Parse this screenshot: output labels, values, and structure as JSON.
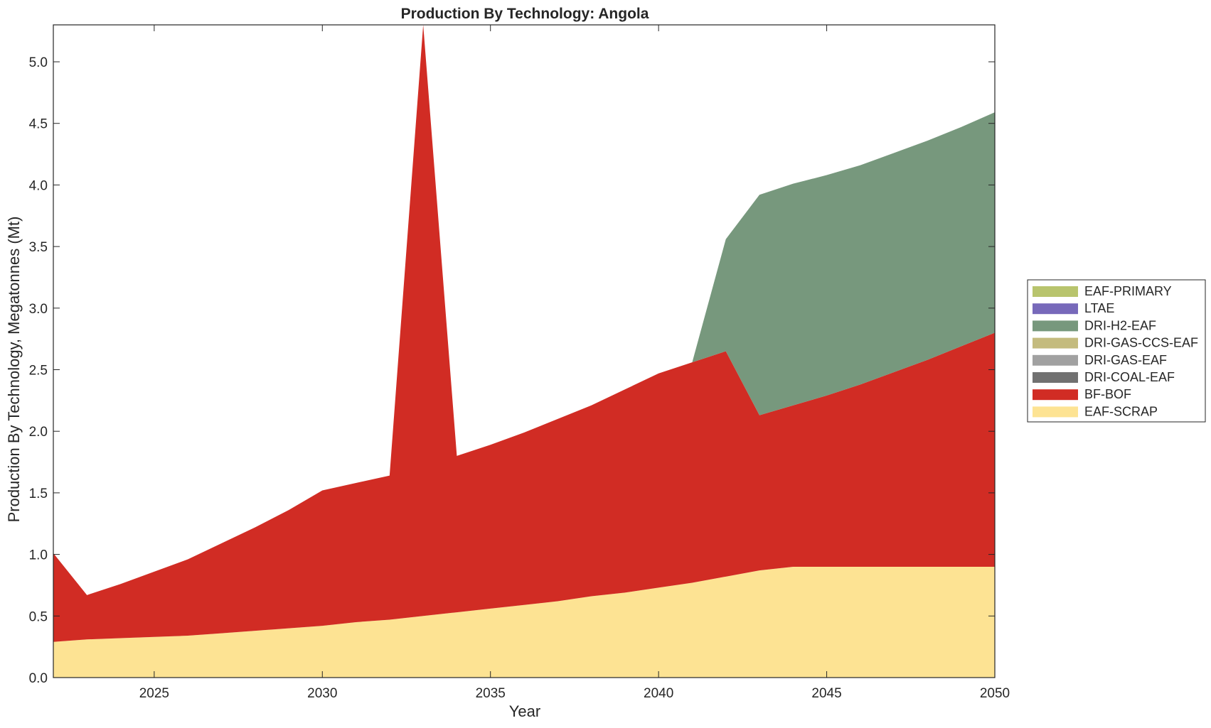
{
  "chart_data": {
    "type": "area",
    "stacked": true,
    "title": "Production By Technology: Angola",
    "xlabel": "Year",
    "ylabel": "Production By Technology, Megatonnes (Mt)",
    "xlim": [
      2022,
      2050
    ],
    "ylim": [
      0,
      5.3
    ],
    "xticks": [
      2025,
      2030,
      2035,
      2040,
      2045,
      2050
    ],
    "yticks": [
      0.0,
      0.5,
      1.0,
      1.5,
      2.0,
      2.5,
      3.0,
      3.5,
      4.0,
      4.5,
      5.0
    ],
    "ytick_labels": [
      "0.0",
      "0.5",
      "1.0",
      "1.5",
      "2.0",
      "2.5",
      "3.0",
      "3.5",
      "4.0",
      "4.5",
      "5.0"
    ],
    "legend_position": "right",
    "grid": false,
    "x": [
      2022,
      2023,
      2024,
      2025,
      2026,
      2027,
      2028,
      2029,
      2030,
      2031,
      2032,
      2033,
      2034,
      2035,
      2036,
      2037,
      2038,
      2039,
      2040,
      2041,
      2042,
      2043,
      2044,
      2045,
      2046,
      2047,
      2048,
      2049,
      2050
    ],
    "series": [
      {
        "name": "EAF-SCRAP",
        "color": "#FDE393",
        "values": [
          0.29,
          0.31,
          0.32,
          0.33,
          0.34,
          0.36,
          0.38,
          0.4,
          0.42,
          0.45,
          0.47,
          0.5,
          0.53,
          0.56,
          0.59,
          0.62,
          0.66,
          0.69,
          0.73,
          0.77,
          0.82,
          0.87,
          0.9,
          0.9,
          0.9,
          0.9,
          0.9,
          0.9,
          0.9
        ]
      },
      {
        "name": "BF-BOF",
        "color": "#D12C24",
        "values": [
          0.72,
          0.36,
          0.44,
          0.53,
          0.62,
          0.73,
          0.84,
          0.96,
          1.1,
          1.13,
          1.17,
          4.8,
          1.27,
          1.33,
          1.4,
          1.48,
          1.55,
          1.65,
          1.74,
          1.79,
          1.83,
          1.26,
          1.31,
          1.39,
          1.48,
          1.58,
          1.68,
          1.79,
          1.9
        ]
      },
      {
        "name": "DRI-COAL-EAF",
        "color": "#717171",
        "values": [
          0,
          0,
          0,
          0,
          0,
          0,
          0,
          0,
          0,
          0,
          0,
          0,
          0,
          0,
          0,
          0,
          0,
          0,
          0,
          0,
          0,
          0,
          0,
          0,
          0,
          0,
          0,
          0,
          0
        ]
      },
      {
        "name": "DRI-GAS-EAF",
        "color": "#A1A1A1",
        "values": [
          0,
          0,
          0,
          0,
          0,
          0,
          0,
          0,
          0,
          0,
          0,
          0,
          0,
          0,
          0,
          0,
          0,
          0,
          0,
          0,
          0,
          0,
          0,
          0,
          0,
          0,
          0,
          0,
          0
        ]
      },
      {
        "name": "DRI-GAS-CCS-EAF",
        "color": "#C4BB7E",
        "values": [
          0,
          0,
          0,
          0,
          0,
          0,
          0,
          0,
          0,
          0,
          0,
          0,
          0,
          0,
          0,
          0,
          0,
          0,
          0,
          0,
          0,
          0,
          0,
          0,
          0,
          0,
          0,
          0,
          0
        ]
      },
      {
        "name": "DRI-H2-EAF",
        "color": "#77987D",
        "values": [
          0,
          0,
          0,
          0,
          0,
          0,
          0,
          0,
          0,
          0,
          0,
          0,
          0,
          0,
          0,
          0,
          0,
          0,
          0,
          0,
          0.91,
          1.79,
          1.8,
          1.79,
          1.78,
          1.78,
          1.78,
          1.78,
          1.79
        ]
      },
      {
        "name": "LTAE",
        "color": "#7769BA",
        "values": [
          0,
          0,
          0,
          0,
          0,
          0,
          0,
          0,
          0,
          0,
          0,
          0,
          0,
          0,
          0,
          0,
          0,
          0,
          0,
          0,
          0,
          0,
          0,
          0,
          0,
          0,
          0,
          0,
          0
        ]
      },
      {
        "name": "EAF-PRIMARY",
        "color": "#B8C46D",
        "values": [
          0,
          0,
          0,
          0,
          0,
          0,
          0,
          0,
          0,
          0,
          0,
          0,
          0,
          0,
          0,
          0,
          0,
          0,
          0,
          0,
          0,
          0,
          0,
          0,
          0,
          0,
          0,
          0,
          0
        ]
      }
    ],
    "legend_order": [
      "EAF-PRIMARY",
      "LTAE",
      "DRI-H2-EAF",
      "DRI-GAS-CCS-EAF",
      "DRI-GAS-EAF",
      "DRI-COAL-EAF",
      "BF-BOF",
      "EAF-SCRAP"
    ]
  }
}
